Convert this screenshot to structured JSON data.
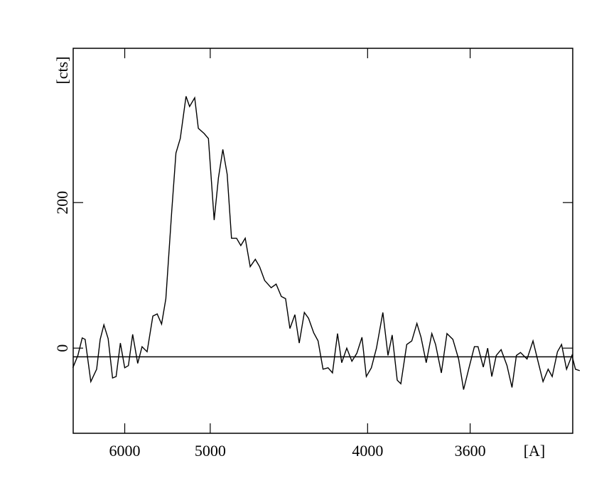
{
  "chart_data": {
    "type": "line",
    "x_label": "[A]",
    "y_label": "[cts]",
    "xscale": "inverse-square",
    "xlim": [
      7000,
      3300
    ],
    "xticks": [
      6000,
      5000,
      4000,
      3600
    ],
    "ylim": [
      -117,
      412
    ],
    "yticks": [
      0,
      200
    ],
    "reference_line": -12,
    "series": [
      {
        "color": "#000000",
        "x": [
          7008,
          6888,
          6788,
          6725,
          6604,
          6488,
          6419,
          6351,
          6274,
          6198,
          6138,
          6068,
          6000,
          5944,
          5881,
          5809,
          5749,
          5682,
          5608,
          5554,
          5501,
          5451,
          5385,
          5338,
          5291,
          5231,
          5195,
          5145,
          5110,
          5056,
          5016,
          4965,
          4928,
          4891,
          4855,
          4820,
          4780,
          4747,
          4714,
          4677,
          4640,
          4610,
          4575,
          4531,
          4498,
          4465,
          4438,
          4411,
          4381,
          4355,
          4325,
          4301,
          4272,
          4248,
          4221,
          4194,
          4171,
          4145,
          4124,
          4099,
          4074,
          4050,
          4026,
          4006,
          3983,
          3960,
          3932,
          3910,
          3892,
          3871,
          3856,
          3832,
          3812,
          3792,
          3776,
          3756,
          3735,
          3721,
          3700,
          3680,
          3659,
          3639,
          3622,
          3602,
          3586,
          3574,
          3557,
          3543,
          3530,
          3516,
          3501,
          3483,
          3468,
          3455,
          3443,
          3424,
          3407,
          3393,
          3379,
          3365,
          3354,
          3340,
          3329,
          3316,
          3302,
          3293,
          3282
        ],
        "values": [
          -27,
          -10,
          14,
          12,
          -46,
          -29,
          12,
          32,
          13,
          -41,
          -39,
          7,
          -27,
          -24,
          19,
          -21,
          2,
          -5,
          44,
          47,
          33,
          68,
          187,
          268,
          288,
          346,
          332,
          344,
          302,
          295,
          288,
          176,
          234,
          273,
          239,
          151,
          151,
          141,
          151,
          112,
          122,
          112,
          93,
          83,
          88,
          71,
          68,
          27,
          46,
          7,
          49,
          41,
          21,
          10,
          -29,
          -27,
          -34,
          20,
          -20,
          0,
          -18,
          -7,
          15,
          -39,
          -27,
          0,
          49,
          -10,
          18,
          -44,
          -49,
          5,
          10,
          34,
          15,
          -20,
          20,
          5,
          -34,
          20,
          12,
          -15,
          -57,
          -24,
          2,
          2,
          -26,
          0,
          -39,
          -10,
          -2,
          -24,
          -54,
          -10,
          -6,
          -15,
          10,
          -18,
          -46,
          -29,
          -39,
          -5,
          5,
          -29,
          -10,
          -29,
          -31
        ]
      }
    ]
  }
}
